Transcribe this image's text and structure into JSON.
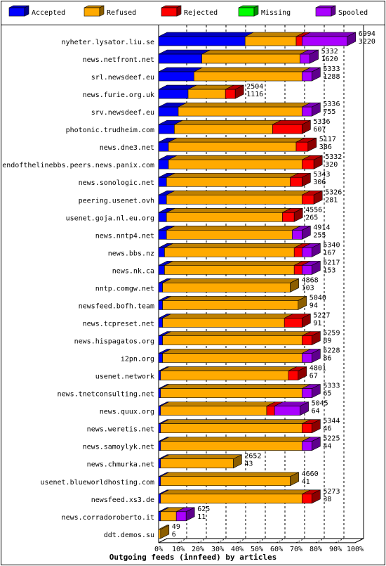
{
  "chart_data": {
    "type": "bar",
    "orientation": "horizontal",
    "stacked": true,
    "title": "Outgoing feeds (innfeed) by articles",
    "xlim": [
      0,
      100
    ],
    "x_ticks": [
      "0%",
      "10%",
      "20%",
      "30%",
      "40%",
      "50%",
      "60%",
      "70%",
      "80%",
      "90%",
      "100%"
    ],
    "legend": {
      "placement": "top",
      "entries": [
        {
          "name": "Accepted",
          "color": "#0000ff"
        },
        {
          "name": "Refused",
          "color": "#ffaa00"
        },
        {
          "name": "Rejected",
          "color": "#ff0000"
        },
        {
          "name": "Missing",
          "color": "#00ff00"
        },
        {
          "name": "Spooled",
          "color": "#aa00ff"
        }
      ]
    },
    "rows": [
      {
        "host": "nyheter.lysator.liu.se",
        "offered": "6994",
        "accepted_count": "3220",
        "values": [
          44,
          26,
          3,
          0,
          23
        ]
      },
      {
        "host": "news.netfront.net",
        "offered": "5332",
        "accepted_count": "1620",
        "values": [
          22,
          50,
          0,
          0,
          5
        ]
      },
      {
        "host": "srl.newsdeef.eu",
        "offered": "5333",
        "accepted_count": "1288",
        "values": [
          18,
          55,
          0,
          0,
          5
        ]
      },
      {
        "host": "news.furie.org.uk",
        "offered": "2504",
        "accepted_count": "1116",
        "values": [
          15,
          19,
          5,
          0,
          0
        ]
      },
      {
        "host": "srv.newsdeef.eu",
        "offered": "5336",
        "accepted_count": "755",
        "values": [
          10,
          63,
          0,
          0,
          5
        ]
      },
      {
        "host": "photonic.trudheim.com",
        "offered": "5336",
        "accepted_count": "607",
        "values": [
          8,
          50,
          15,
          0,
          0
        ]
      },
      {
        "host": "news.dne3.net",
        "offered": "5117",
        "accepted_count": "386",
        "values": [
          5,
          65,
          6,
          0,
          0
        ]
      },
      {
        "host": "endofthelinebbs.peers.news.panix.com",
        "offered": "5332",
        "accepted_count": "320",
        "values": [
          5,
          68,
          6,
          0,
          0
        ]
      },
      {
        "host": "news.sonologic.net",
        "offered": "5343",
        "accepted_count": "306",
        "values": [
          4,
          63,
          6,
          0,
          0
        ]
      },
      {
        "host": "peering.usenet.ovh",
        "offered": "5326",
        "accepted_count": "281",
        "values": [
          4,
          69,
          6,
          0,
          0
        ]
      },
      {
        "host": "usenet.goja.nl.eu.org",
        "offered": "4556",
        "accepted_count": "265",
        "values": [
          4,
          59,
          6,
          0,
          0
        ]
      },
      {
        "host": "news.nntp4.net",
        "offered": "4914",
        "accepted_count": "255",
        "values": [
          4,
          64,
          0,
          0,
          5
        ]
      },
      {
        "host": "news.bbs.nz",
        "offered": "5340",
        "accepted_count": "167",
        "values": [
          3,
          66,
          4,
          0,
          5
        ]
      },
      {
        "host": "news.nk.ca",
        "offered": "5217",
        "accepted_count": "153",
        "values": [
          3,
          66,
          4,
          0,
          5
        ]
      },
      {
        "host": "nntp.comgw.net",
        "offered": "4868",
        "accepted_count": "103",
        "values": [
          2,
          65,
          0,
          0,
          0
        ]
      },
      {
        "host": "newsfeed.bofh.team",
        "offered": "5040",
        "accepted_count": "94",
        "values": [
          2,
          69,
          0,
          0,
          0
        ]
      },
      {
        "host": "news.tcpreset.net",
        "offered": "5227",
        "accepted_count": "91",
        "values": [
          2,
          62,
          9,
          0,
          0
        ]
      },
      {
        "host": "news.hispagatos.org",
        "offered": "5259",
        "accepted_count": "89",
        "values": [
          2,
          71,
          5,
          0,
          0
        ]
      },
      {
        "host": "i2pn.org",
        "offered": "5228",
        "accepted_count": "86",
        "values": [
          2,
          71,
          0,
          0,
          5
        ]
      },
      {
        "host": "usenet.network",
        "offered": "4801",
        "accepted_count": "67",
        "values": [
          1,
          65,
          5,
          0,
          0
        ]
      },
      {
        "host": "news.tnetconsulting.net",
        "offered": "5333",
        "accepted_count": "65",
        "values": [
          1,
          72,
          0,
          0,
          5
        ]
      },
      {
        "host": "news.quux.org",
        "offered": "5045",
        "accepted_count": "64",
        "values": [
          1,
          54,
          4,
          0,
          13
        ]
      },
      {
        "host": "news.weretis.net",
        "offered": "5344",
        "accepted_count": "46",
        "values": [
          1,
          72,
          5,
          0,
          0
        ]
      },
      {
        "host": "news.samoylyk.net",
        "offered": "5225",
        "accepted_count": "44",
        "values": [
          1,
          72,
          0,
          0,
          5
        ]
      },
      {
        "host": "news.chmurka.net",
        "offered": "2652",
        "accepted_count": "43",
        "values": [
          1,
          37,
          0,
          0,
          0
        ]
      },
      {
        "host": "usenet.blueworldhosting.com",
        "offered": "4660",
        "accepted_count": "41",
        "values": [
          1,
          66,
          0,
          0,
          0
        ]
      },
      {
        "host": "newsfeed.xs3.de",
        "offered": "5273",
        "accepted_count": "38",
        "values": [
          1,
          72,
          5,
          0,
          0
        ]
      },
      {
        "host": "news.corradoroberto.it",
        "offered": "625",
        "accepted_count": "11",
        "values": [
          1,
          8,
          0,
          0,
          5
        ]
      },
      {
        "host": "ddt.demos.su",
        "offered": "49",
        "accepted_count": "6",
        "values": [
          0,
          1,
          0,
          0,
          0
        ]
      }
    ]
  }
}
